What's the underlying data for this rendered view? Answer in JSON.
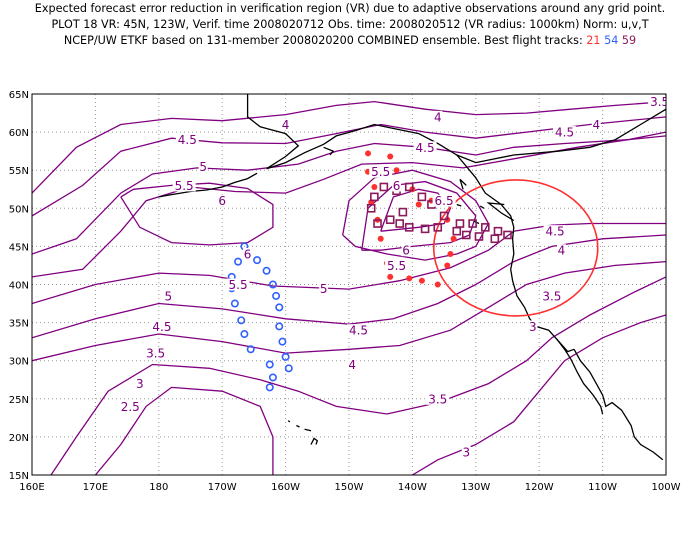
{
  "header": {
    "line1": "Expected forecast error reduction in verification region (VR) due to adaptive observations around any grid point.",
    "line2": "PLOT 18 VR: 45N, 123W, Verif. time 2008020712 Obs. time: 2008020512 (VR radius: 1000km) Norm: u,v,T",
    "line3_prefix": "NCEP/UW ETKF based on 131-member 2008020200 COMBINED ensemble.  Best flight tracks: ",
    "track_a": "21",
    "track_b": "54",
    "track_c": "59"
  },
  "colors": {
    "contour": "#800080",
    "coast": "#000000",
    "grid": "#999999",
    "vr_circle": "#ff3030",
    "track_a": "#ff3030",
    "track_b": "#3060ff",
    "track_c": "#8b1a5a"
  },
  "axes": {
    "lat_labels": [
      "65N",
      "60N",
      "55N",
      "50N",
      "45N",
      "40N",
      "35N",
      "30N",
      "25N",
      "20N",
      "15N"
    ],
    "lon_labels": [
      "160E",
      "170E",
      "180",
      "170W",
      "160W",
      "150W",
      "140W",
      "130W",
      "120W",
      "110W",
      "100W"
    ]
  },
  "contour_labels": [
    {
      "t": "4.5",
      "lon": -175.5,
      "lat": 59.0
    },
    {
      "t": "5",
      "lon": -173,
      "lat": 55.5
    },
    {
      "t": "5.5",
      "lon": -176,
      "lat": 53.0
    },
    {
      "t": "6",
      "lon": -170,
      "lat": 51.0
    },
    {
      "t": "6",
      "lon": -166,
      "lat": 44.0
    },
    {
      "t": "5.5",
      "lon": -167.5,
      "lat": 40.0
    },
    {
      "t": "5",
      "lon": -178.5,
      "lat": 38.5
    },
    {
      "t": "4.5",
      "lon": -179.5,
      "lat": 34.5
    },
    {
      "t": "3.5",
      "lon": -180.5,
      "lat": 31.0
    },
    {
      "t": "3",
      "lon": -183,
      "lat": 27.0
    },
    {
      "t": "2.5",
      "lon": -184.5,
      "lat": 24.0
    },
    {
      "t": "4",
      "lon": -160,
      "lat": 61.0
    },
    {
      "t": "5",
      "lon": -154,
      "lat": 39.5
    },
    {
      "t": "4.5",
      "lon": -148.5,
      "lat": 34.0
    },
    {
      "t": "4",
      "lon": -149.5,
      "lat": 29.5
    },
    {
      "t": "5.5",
      "lon": -145,
      "lat": 54.8
    },
    {
      "t": "6",
      "lon": -142.5,
      "lat": 53.0
    },
    {
      "t": "6.5",
      "lon": -135,
      "lat": 51.0
    },
    {
      "t": "6",
      "lon": -141,
      "lat": 44.5
    },
    {
      "t": "5.5",
      "lon": -142.5,
      "lat": 42.5
    },
    {
      "t": "4",
      "lon": -136,
      "lat": 62.0
    },
    {
      "t": "4.5",
      "lon": -138,
      "lat": 58.0
    },
    {
      "t": "3.5",
      "lon": -101,
      "lat": 64.0
    },
    {
      "t": "4",
      "lon": -111,
      "lat": 61.0
    },
    {
      "t": "4.5",
      "lon": -116,
      "lat": 60.0
    },
    {
      "t": "4.5",
      "lon": -117.5,
      "lat": 47.0
    },
    {
      "t": "4",
      "lon": -116.5,
      "lat": 44.5
    },
    {
      "t": "3.5",
      "lon": -118,
      "lat": 38.5
    },
    {
      "t": "3",
      "lon": -121,
      "lat": 34.5
    },
    {
      "t": "3.5",
      "lon": -136,
      "lat": 25.0
    },
    {
      "t": "3",
      "lon": -131.5,
      "lat": 18.0
    }
  ],
  "track_a_points": [
    [
      -147,
      57.2
    ],
    [
      -143.5,
      56.8
    ],
    [
      -147,
      54.8
    ],
    [
      -142.5,
      55.0
    ],
    [
      -146,
      52.8
    ],
    [
      -146.5,
      50.8
    ],
    [
      -145.5,
      48.5
    ],
    [
      -145,
      46.0
    ],
    [
      -144,
      42.8
    ],
    [
      -143.5,
      41.0
    ],
    [
      -140.5,
      40.8
    ],
    [
      -138.5,
      40.5
    ],
    [
      -136,
      40.0
    ],
    [
      -134.5,
      42.5
    ],
    [
      -134,
      44.0
    ],
    [
      -133.5,
      46.0
    ],
    [
      -134.5,
      48.5
    ],
    [
      -137,
      51.0
    ],
    [
      -139,
      50.5
    ],
    [
      -140,
      52.5
    ]
  ],
  "track_b_points": [
    [
      -166.5,
      45.0
    ],
    [
      -164.5,
      43.2
    ],
    [
      -167.5,
      43.0
    ],
    [
      -163,
      41.8
    ],
    [
      -168.5,
      41.0
    ],
    [
      -162,
      40.0
    ],
    [
      -168.5,
      39.5
    ],
    [
      -161.5,
      38.5
    ],
    [
      -168,
      37.5
    ],
    [
      -161,
      37.0
    ],
    [
      -167,
      35.3
    ],
    [
      -161,
      34.5
    ],
    [
      -166.5,
      33.5
    ],
    [
      -160.5,
      32.5
    ],
    [
      -165.5,
      31.5
    ],
    [
      -160,
      30.5
    ],
    [
      -162.5,
      29.5
    ],
    [
      -159.5,
      29.0
    ],
    [
      -162,
      27.8
    ],
    [
      -162.5,
      26.5
    ]
  ],
  "track_c_points": [
    [
      -146.5,
      50.0
    ],
    [
      -146,
      51.5
    ],
    [
      -144.5,
      52.8
    ],
    [
      -142.5,
      52.3
    ],
    [
      -140.5,
      52.8
    ],
    [
      -138.5,
      51.5
    ],
    [
      -137,
      50.5
    ],
    [
      -135,
      49.0
    ],
    [
      -132.5,
      48.0
    ],
    [
      -130.5,
      48.0
    ],
    [
      -128.5,
      47.5
    ],
    [
      -126.5,
      47.0
    ],
    [
      -125,
      46.5
    ],
    [
      -127,
      46.0
    ],
    [
      -129.5,
      46.3
    ],
    [
      -131.5,
      46.5
    ],
    [
      -133,
      47.0
    ],
    [
      -136,
      47.5
    ],
    [
      -138,
      47.3
    ],
    [
      -140.5,
      47.5
    ],
    [
      -142,
      48.0
    ],
    [
      -145.5,
      48.0
    ],
    [
      -143.5,
      48.5
    ],
    [
      -141.5,
      49.5
    ]
  ]
}
